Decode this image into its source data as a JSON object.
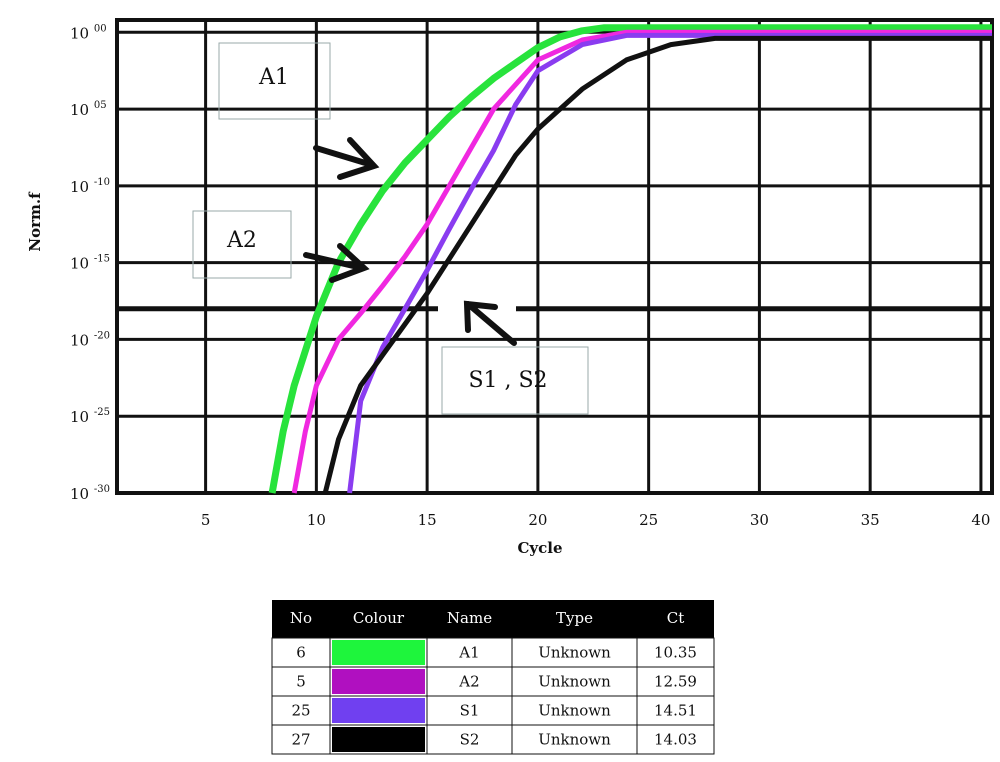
{
  "chart_data": {
    "type": "line",
    "xlabel": "Cycle",
    "ylabel": "Norm.f",
    "xlim": [
      1,
      40.5
    ],
    "xticks": [
      5,
      10,
      15,
      20,
      25,
      30,
      35,
      40
    ],
    "ylim": [
      -30,
      0.8
    ],
    "yticks": [
      {
        "value": 0,
        "label": "10 00"
      },
      {
        "value": -5,
        "label": "10 05"
      },
      {
        "value": -10,
        "label": "10 -10"
      },
      {
        "value": -15,
        "label": "10 -15"
      },
      {
        "value": -20,
        "label": "10 -20"
      },
      {
        "value": -25,
        "label": "10 -25"
      },
      {
        "value": -30,
        "label": "10 -30"
      }
    ],
    "grid": true,
    "threshold": -18,
    "series": [
      {
        "name": "A1",
        "color": "#28e33c",
        "x": [
          8,
          8.5,
          9,
          10,
          11,
          12,
          13,
          14,
          15,
          16,
          17,
          18,
          19,
          20,
          21,
          22,
          23,
          40.5
        ],
        "values": [
          -30,
          -26,
          -23,
          -18.5,
          -15,
          -12.5,
          -10.3,
          -8.5,
          -7,
          -5.5,
          -4.2,
          -3,
          -2,
          -1,
          -0.3,
          0.1,
          0.3,
          0.3
        ]
      },
      {
        "name": "A2",
        "color": "#f028e0",
        "x": [
          9,
          9.5,
          10,
          11,
          12,
          13,
          14,
          15,
          16,
          17,
          18,
          19,
          20,
          22,
          24,
          40.5
        ],
        "values": [
          -30,
          -26,
          -23,
          -20,
          -18.3,
          -16.5,
          -14.6,
          -12.5,
          -10,
          -7.5,
          -5,
          -3.4,
          -1.8,
          -0.5,
          0,
          0
        ]
      },
      {
        "name": "S1",
        "color": "#8a3cf0",
        "x": [
          11.5,
          12,
          13,
          14,
          15,
          16,
          17,
          18,
          19,
          20,
          22,
          24,
          40.5
        ],
        "values": [
          -30,
          -24,
          -20.5,
          -18,
          -15.5,
          -12.8,
          -10.2,
          -7.7,
          -4.7,
          -2.5,
          -0.8,
          -0.2,
          -0.2
        ]
      },
      {
        "name": "S2",
        "color": "#111111",
        "x": [
          10.4,
          11,
          12,
          13,
          14,
          15,
          17,
          19,
          20,
          22,
          24,
          26,
          28,
          40.5
        ],
        "values": [
          -30,
          -26.5,
          -23,
          -21,
          -19,
          -17,
          -12.5,
          -8,
          -6.3,
          -3.7,
          -1.8,
          -0.8,
          -0.4,
          -0.4
        ]
      }
    ],
    "annotations": [
      "A1",
      "A2",
      "S1 , S2"
    ]
  },
  "table": {
    "columns": [
      "No",
      "Colour",
      "Name",
      "Type",
      "Ct"
    ],
    "rows": [
      {
        "no": 6,
        "color": "#1ef53c",
        "name": "A1",
        "type": "Unknown",
        "ct": 10.35
      },
      {
        "no": 5,
        "color": "#b010c0",
        "name": "A2",
        "type": "Unknown",
        "ct": 12.59
      },
      {
        "no": 25,
        "color": "#7040f0",
        "name": "S1",
        "type": "Unknown",
        "ct": 14.51
      },
      {
        "no": 27,
        "color": "#000000",
        "name": "S2",
        "type": "Unknown",
        "ct": 14.03
      }
    ]
  }
}
